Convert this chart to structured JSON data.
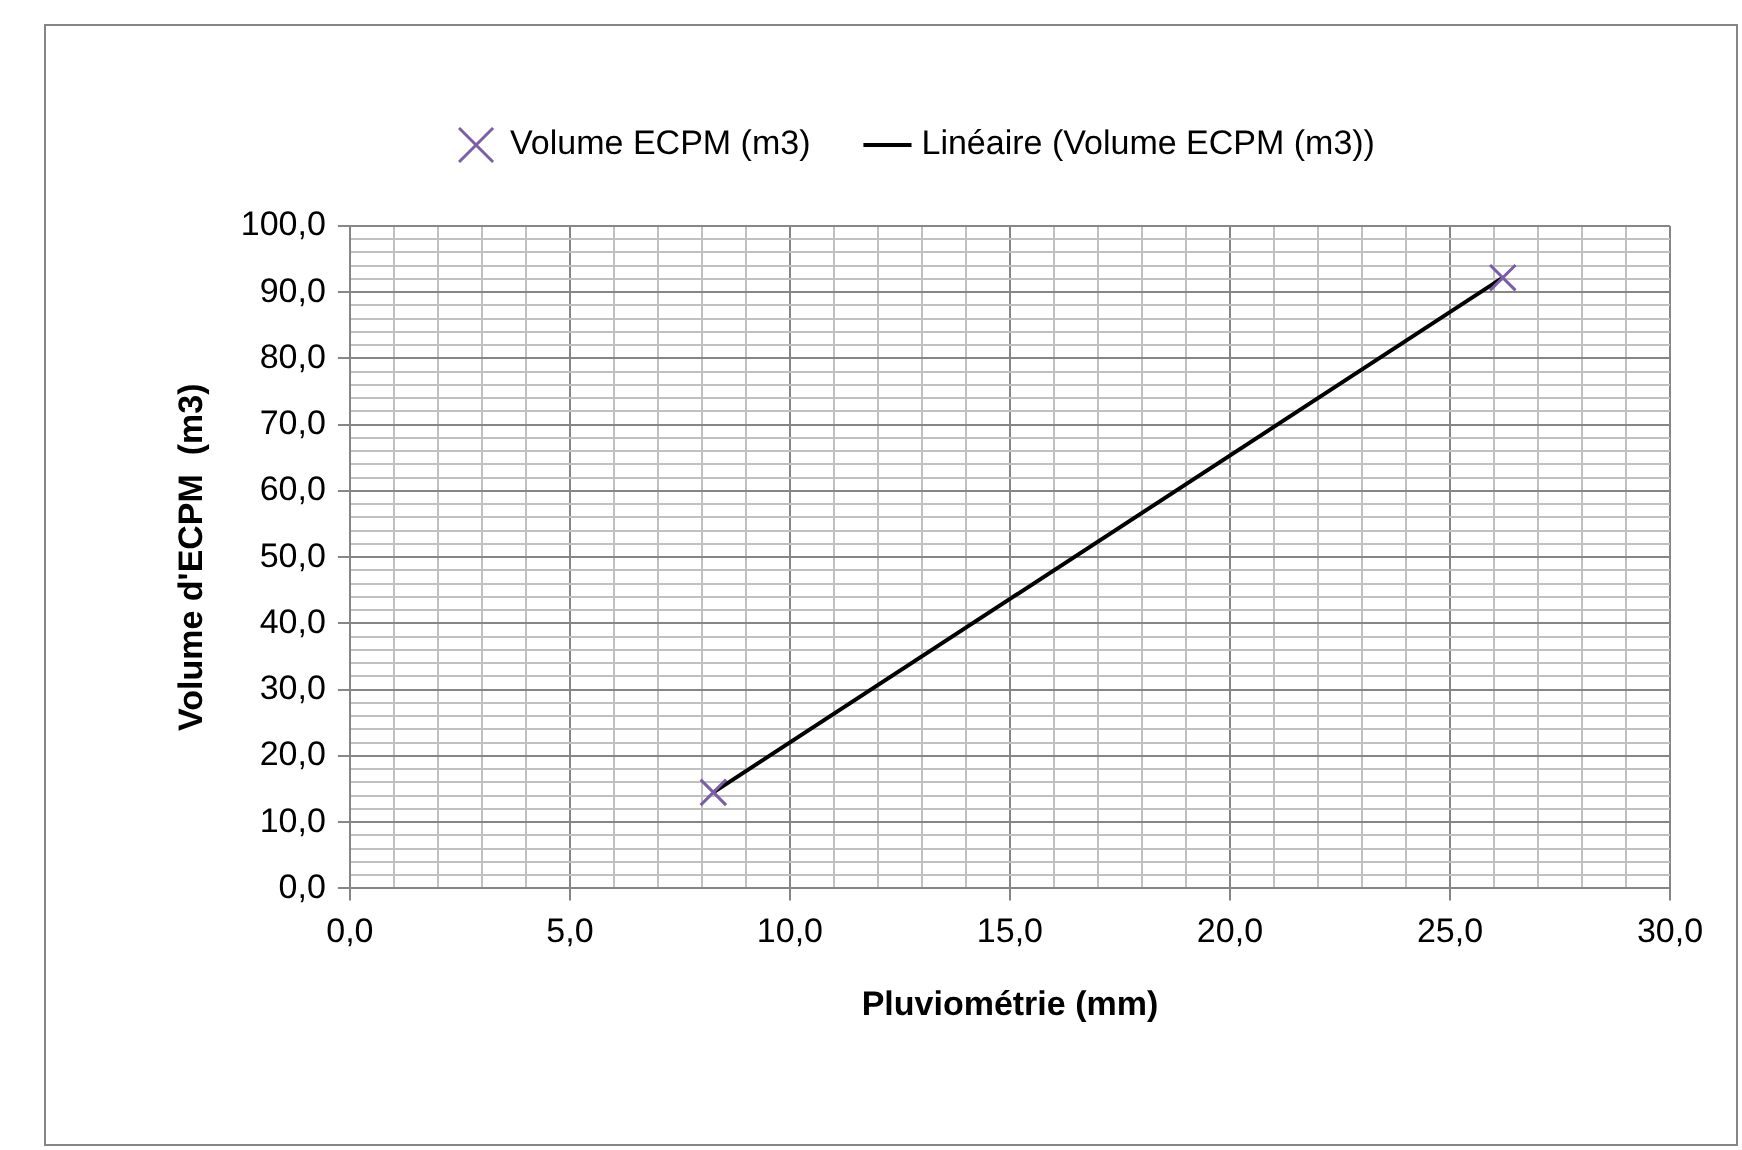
{
  "chart_data": {
    "type": "scatter",
    "xlabel": "Pluviométrie (mm)",
    "ylabel": "Volume d'ECPM  (m3)",
    "series": [
      {
        "name": "Volume ECPM (m3)",
        "type": "scatter",
        "color": "#7b5ea7",
        "marker": "cross",
        "values": [
          14.5,
          92.2
        ]
      },
      {
        "name": "Linéaire (Volume ECPM (m3))",
        "type": "line",
        "color": "#000000",
        "marker": "none",
        "values": [
          14.5,
          92.2
        ]
      }
    ],
    "x": [
      8.26,
      26.2
    ],
    "xlim": [
      0,
      30
    ],
    "ylim": [
      0,
      100
    ],
    "xticks": [
      {
        "value": 0,
        "label": "0,0"
      },
      {
        "value": 1,
        "label": null
      },
      {
        "value": 2,
        "label": null
      },
      {
        "value": 3,
        "label": null
      },
      {
        "value": 4,
        "label": null
      },
      {
        "value": 5,
        "label": "5,0"
      },
      {
        "value": 6,
        "label": null
      },
      {
        "value": 7,
        "label": null
      },
      {
        "value": 8,
        "label": null
      },
      {
        "value": 9,
        "label": null
      },
      {
        "value": 10,
        "label": "10,0"
      },
      {
        "value": 11,
        "label": null
      },
      {
        "value": 12,
        "label": null
      },
      {
        "value": 13,
        "label": null
      },
      {
        "value": 14,
        "label": null
      },
      {
        "value": 15,
        "label": "15,0"
      },
      {
        "value": 16,
        "label": null
      },
      {
        "value": 17,
        "label": null
      },
      {
        "value": 18,
        "label": null
      },
      {
        "value": 19,
        "label": null
      },
      {
        "value": 20,
        "label": "20,0"
      },
      {
        "value": 21,
        "label": null
      },
      {
        "value": 22,
        "label": null
      },
      {
        "value": 23,
        "label": null
      },
      {
        "value": 24,
        "label": null
      },
      {
        "value": 25,
        "label": "25,0"
      },
      {
        "value": 26,
        "label": null
      },
      {
        "value": 27,
        "label": null
      },
      {
        "value": 28,
        "label": null
      },
      {
        "value": 29,
        "label": null
      },
      {
        "value": 30,
        "label": "30,0"
      }
    ],
    "yticks": [
      {
        "value": 0,
        "label": "0,0"
      },
      {
        "value": 2,
        "label": null
      },
      {
        "value": 4,
        "label": null
      },
      {
        "value": 6,
        "label": null
      },
      {
        "value": 8,
        "label": null
      },
      {
        "value": 10,
        "label": "10,0"
      },
      {
        "value": 12,
        "label": null
      },
      {
        "value": 14,
        "label": null
      },
      {
        "value": 16,
        "label": null
      },
      {
        "value": 18,
        "label": null
      },
      {
        "value": 20,
        "label": "20,0"
      },
      {
        "value": 22,
        "label": null
      },
      {
        "value": 24,
        "label": null
      },
      {
        "value": 26,
        "label": null
      },
      {
        "value": 28,
        "label": null
      },
      {
        "value": 30,
        "label": "30,0"
      },
      {
        "value": 32,
        "label": null
      },
      {
        "value": 34,
        "label": null
      },
      {
        "value": 36,
        "label": null
      },
      {
        "value": 38,
        "label": null
      },
      {
        "value": 40,
        "label": "40,0"
      },
      {
        "value": 42,
        "label": null
      },
      {
        "value": 44,
        "label": null
      },
      {
        "value": 46,
        "label": null
      },
      {
        "value": 48,
        "label": null
      },
      {
        "value": 50,
        "label": "50,0"
      },
      {
        "value": 52,
        "label": null
      },
      {
        "value": 54,
        "label": null
      },
      {
        "value": 56,
        "label": null
      },
      {
        "value": 58,
        "label": null
      },
      {
        "value": 60,
        "label": "60,0"
      },
      {
        "value": 62,
        "label": null
      },
      {
        "value": 64,
        "label": null
      },
      {
        "value": 66,
        "label": null
      },
      {
        "value": 68,
        "label": null
      },
      {
        "value": 70,
        "label": "70,0"
      },
      {
        "value": 72,
        "label": null
      },
      {
        "value": 74,
        "label": null
      },
      {
        "value": 76,
        "label": null
      },
      {
        "value": 78,
        "label": null
      },
      {
        "value": 80,
        "label": "80,0"
      },
      {
        "value": 82,
        "label": null
      },
      {
        "value": 84,
        "label": null
      },
      {
        "value": 86,
        "label": null
      },
      {
        "value": 88,
        "label": null
      },
      {
        "value": 90,
        "label": "90,0"
      },
      {
        "value": 92,
        "label": null
      },
      {
        "value": 94,
        "label": null
      },
      {
        "value": 96,
        "label": null
      },
      {
        "value": 98,
        "label": null
      },
      {
        "value": 100,
        "label": "100,0"
      }
    ],
    "grid": true,
    "legend": "top"
  }
}
